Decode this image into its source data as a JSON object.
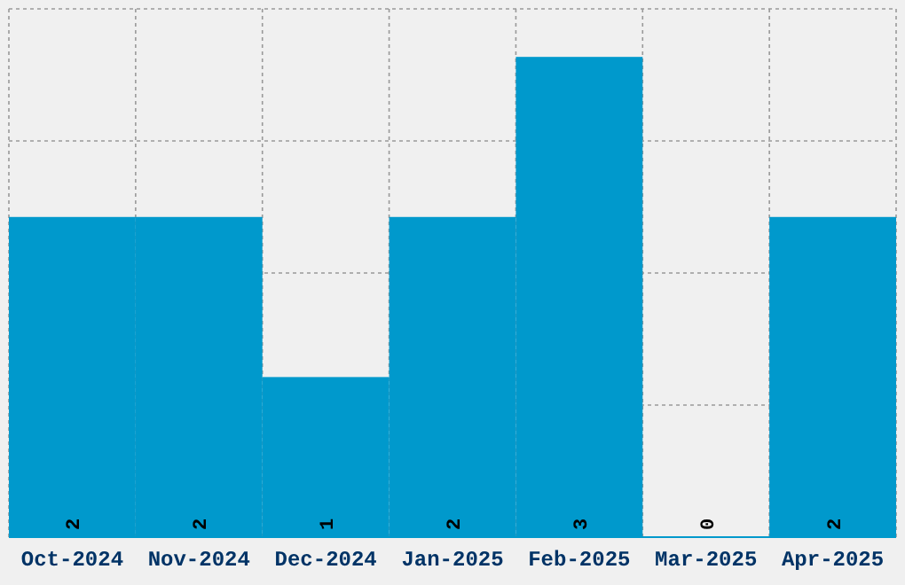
{
  "chart_data": {
    "type": "bar",
    "categories": [
      "Oct-2024",
      "Nov-2024",
      "Dec-2024",
      "Jan-2025",
      "Feb-2025",
      "Mar-2025",
      "Apr-2025"
    ],
    "values": [
      2,
      2,
      1,
      2,
      3,
      0,
      2
    ],
    "color": "#0099cc",
    "data_labels": true,
    "ylim": [
      0,
      3.3
    ],
    "yticks": [
      {
        "value": 0.825,
        "label": null
      },
      {
        "value": 1.65,
        "label": null
      },
      {
        "value": 2.475,
        "label": null
      },
      {
        "value": 3.3,
        "label": null
      }
    ],
    "grid": true,
    "tick_labels": "x"
  }
}
